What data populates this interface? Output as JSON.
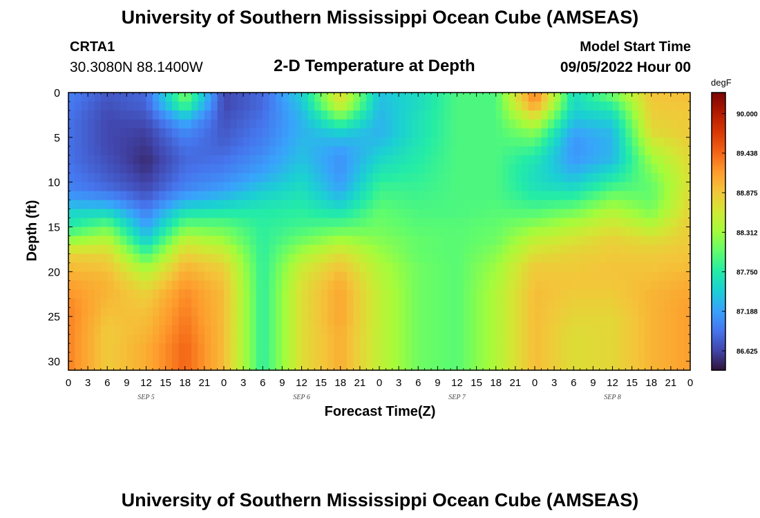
{
  "header": {
    "title": "University of Southern Mississippi Ocean Cube (AMSEAS)",
    "station": "CRTA1",
    "coords": "30.3080N  88.1400W",
    "subtitle": "2-D Temperature at Depth",
    "model_start_label": "Model Start Time",
    "model_start_value": "09/05/2022 Hour 00"
  },
  "footer_title": "University of Southern Mississippi Ocean Cube (AMSEAS)",
  "chart_data": {
    "type": "heatmap",
    "title": "2-D Temperature at Depth",
    "xlabel": "Forecast Time(Z)",
    "ylabel": "Depth (ft)",
    "colorbar_unit": "degF",
    "colorbar_ticks": [
      "90.000",
      "89.438",
      "88.875",
      "88.312",
      "87.750",
      "87.188",
      "86.625"
    ],
    "colorbar_range": [
      86.35,
      90.3
    ],
    "x_range_hours": [
      0,
      96
    ],
    "x_tick_labels": [
      "0",
      "3",
      "6",
      "9",
      "12",
      "15",
      "18",
      "21",
      "0",
      "3",
      "6",
      "9",
      "12",
      "15",
      "18",
      "21",
      "0",
      "3",
      "6",
      "9",
      "12",
      "15",
      "18",
      "21",
      "0",
      "3",
      "6",
      "9",
      "12",
      "15",
      "18",
      "21",
      "0"
    ],
    "date_labels": [
      "SEP 5",
      "SEP 6",
      "SEP 7",
      "SEP 8"
    ],
    "y_range": [
      0,
      31
    ],
    "y_ticks": [
      0,
      5,
      10,
      15,
      20,
      25,
      30
    ],
    "y_reversed": true,
    "depths_ft": [
      0,
      1.5,
      3,
      4.5,
      6,
      7.5,
      9,
      10.5,
      12,
      13.5,
      15,
      16.5,
      18,
      19.5,
      21,
      22.5,
      24,
      25.5,
      27,
      28.5,
      30,
      31
    ],
    "times_h": [
      0,
      6,
      12,
      18,
      24,
      30,
      36,
      42,
      48,
      54,
      60,
      66,
      72,
      78,
      84,
      90,
      96
    ],
    "temperature_degF": [
      [
        87.0,
        86.75,
        86.85,
        88.2,
        86.65,
        86.85,
        87.5,
        88.8,
        87.4,
        87.6,
        87.95,
        87.95,
        89.4,
        87.6,
        88.15,
        88.9,
        88.95
      ],
      [
        86.95,
        86.7,
        86.8,
        87.9,
        86.65,
        86.85,
        87.4,
        88.55,
        87.35,
        87.6,
        87.95,
        87.95,
        89.1,
        87.55,
        87.8,
        88.85,
        88.9
      ],
      [
        86.9,
        86.65,
        86.7,
        87.3,
        86.7,
        86.9,
        87.3,
        88.0,
        87.3,
        87.65,
        87.95,
        87.95,
        88.6,
        87.4,
        87.5,
        88.8,
        88.85
      ],
      [
        86.9,
        86.65,
        86.6,
        87.05,
        86.75,
        86.95,
        87.3,
        87.5,
        87.3,
        87.65,
        87.95,
        87.95,
        88.2,
        87.2,
        87.35,
        88.7,
        88.85
      ],
      [
        86.9,
        86.65,
        86.55,
        86.9,
        86.8,
        87.0,
        87.35,
        87.2,
        87.4,
        87.7,
        87.95,
        87.95,
        87.9,
        87.1,
        87.3,
        88.5,
        88.8
      ],
      [
        86.9,
        86.7,
        86.5,
        86.85,
        86.9,
        87.1,
        87.4,
        87.1,
        87.55,
        87.75,
        87.95,
        87.95,
        87.7,
        87.15,
        87.35,
        88.3,
        88.75
      ],
      [
        86.95,
        86.75,
        86.55,
        86.9,
        87.0,
        87.2,
        87.5,
        87.1,
        87.7,
        87.8,
        87.95,
        87.95,
        87.6,
        87.3,
        87.6,
        88.15,
        88.7
      ],
      [
        87.0,
        86.85,
        86.65,
        87.0,
        87.15,
        87.4,
        87.6,
        87.2,
        87.85,
        87.85,
        87.95,
        87.95,
        87.65,
        87.55,
        87.9,
        88.05,
        88.7
      ],
      [
        87.2,
        87.1,
        86.8,
        87.25,
        87.4,
        87.6,
        87.7,
        87.4,
        87.95,
        87.9,
        87.95,
        87.95,
        87.8,
        87.85,
        88.2,
        88.05,
        88.75
      ],
      [
        87.55,
        87.6,
        87.0,
        87.7,
        87.75,
        87.75,
        87.8,
        87.7,
        88.05,
        87.95,
        87.95,
        88.0,
        88.0,
        88.15,
        88.45,
        88.2,
        88.8
      ],
      [
        87.75,
        88.1,
        87.2,
        88.1,
        88.05,
        87.8,
        87.9,
        88.0,
        88.1,
        88.0,
        88.0,
        88.05,
        88.25,
        88.45,
        88.65,
        88.45,
        88.85
      ],
      [
        88.25,
        88.45,
        87.5,
        88.5,
        88.3,
        87.8,
        88.1,
        88.35,
        88.2,
        88.05,
        88.0,
        88.1,
        88.5,
        88.65,
        88.8,
        88.7,
        88.85
      ],
      [
        88.8,
        88.75,
        87.9,
        88.8,
        88.6,
        87.8,
        88.35,
        88.7,
        88.3,
        88.05,
        88.0,
        88.2,
        88.7,
        88.8,
        88.85,
        88.85,
        88.9
      ],
      [
        88.95,
        88.9,
        88.3,
        89.0,
        88.8,
        87.8,
        88.55,
        88.9,
        88.4,
        88.1,
        88.0,
        88.3,
        88.85,
        88.85,
        88.9,
        88.9,
        88.95
      ],
      [
        89.1,
        89.0,
        88.6,
        89.15,
        88.9,
        87.8,
        88.65,
        89.05,
        88.45,
        88.1,
        88.0,
        88.35,
        88.9,
        88.9,
        88.9,
        88.95,
        89.05
      ],
      [
        89.2,
        89.0,
        88.8,
        89.25,
        88.95,
        87.8,
        88.7,
        89.1,
        88.5,
        88.1,
        88.0,
        88.4,
        88.95,
        88.85,
        88.85,
        89.0,
        89.1
      ],
      [
        89.3,
        88.95,
        88.9,
        89.3,
        88.95,
        87.8,
        88.7,
        89.1,
        88.5,
        88.1,
        88.0,
        88.4,
        88.95,
        88.8,
        88.8,
        89.0,
        89.15
      ],
      [
        89.3,
        88.9,
        88.95,
        89.35,
        88.95,
        87.8,
        88.7,
        89.1,
        88.5,
        88.1,
        88.0,
        88.4,
        88.95,
        88.75,
        88.75,
        89.0,
        89.15
      ],
      [
        89.3,
        88.85,
        89.0,
        89.4,
        88.95,
        87.8,
        88.7,
        89.05,
        88.5,
        88.1,
        88.0,
        88.4,
        88.95,
        88.7,
        88.75,
        89.0,
        89.15
      ],
      [
        89.3,
        88.85,
        89.05,
        89.45,
        88.95,
        87.8,
        88.7,
        89.05,
        88.5,
        88.1,
        88.0,
        88.4,
        88.95,
        88.7,
        88.75,
        89.0,
        89.15
      ],
      [
        89.3,
        88.85,
        89.05,
        89.45,
        88.95,
        87.8,
        88.7,
        89.05,
        88.5,
        88.1,
        88.0,
        88.4,
        88.95,
        88.7,
        88.75,
        89.0,
        89.15
      ],
      [
        89.3,
        88.85,
        89.05,
        89.45,
        88.95,
        87.8,
        88.7,
        89.05,
        88.5,
        88.1,
        88.0,
        88.4,
        88.95,
        88.7,
        88.75,
        89.0,
        89.15
      ]
    ],
    "colormap": [
      "#30123b",
      "#4145ab",
      "#4675ed",
      "#39a2fc",
      "#1bcfd4",
      "#24eca6",
      "#61fc6c",
      "#a4fc3b",
      "#d1e834",
      "#f3c63a",
      "#fe9b2d",
      "#f36315",
      "#d93806",
      "#b11901",
      "#7a0402"
    ]
  }
}
